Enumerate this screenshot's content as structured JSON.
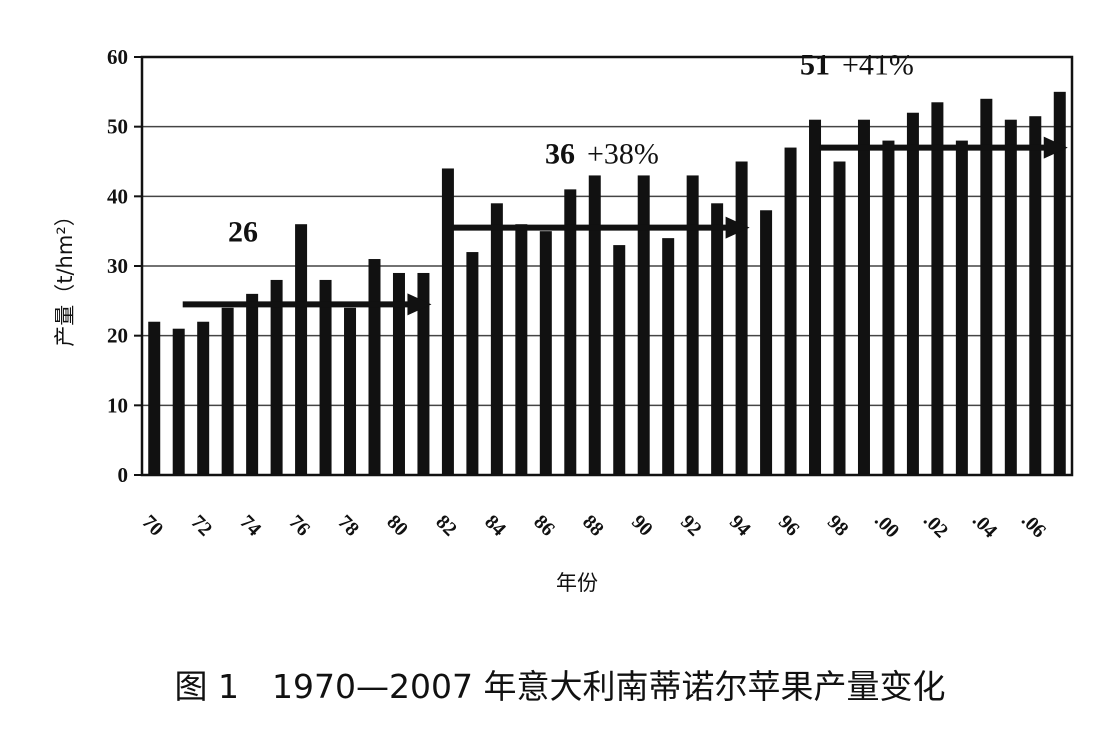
{
  "caption": "图 1　1970—2007 年意大利南蒂诺尔苹果产量变化",
  "chart_data": {
    "type": "bar",
    "xlabel": "年份",
    "ylabel": "产量（t/hm²）",
    "ylim": [
      0,
      60
    ],
    "yticks": [
      0,
      10,
      20,
      30,
      40,
      50,
      60
    ],
    "grid": true,
    "x_tick_labels": [
      "70",
      "72",
      "74",
      "76",
      "78",
      "80",
      "82",
      "84",
      "86",
      "88",
      "90",
      "92",
      "94",
      "96",
      "98",
      ".00",
      ".02",
      ".04",
      ".06"
    ],
    "categories": [
      "1970",
      "1971",
      "1972",
      "1973",
      "1974",
      "1975",
      "1976",
      "1977",
      "1978",
      "1979",
      "1980",
      "1981",
      "1982",
      "1983",
      "1984",
      "1985",
      "1986",
      "1987",
      "1988",
      "1989",
      "1990",
      "1991",
      "1992",
      "1993",
      "1994",
      "1995",
      "1996",
      "1997",
      "1998",
      "1999",
      "2000",
      "2001",
      "2002",
      "2003",
      "2004",
      "2005",
      "2006",
      "2007"
    ],
    "values": [
      22,
      21,
      22,
      24,
      26,
      28,
      36,
      28,
      24,
      31,
      29,
      29,
      44,
      32,
      39,
      36,
      35,
      41,
      43,
      33,
      43,
      34,
      43,
      39,
      45,
      38,
      47,
      51,
      45,
      51,
      48,
      52,
      53.5,
      48,
      54,
      51,
      51.5,
      55
    ],
    "annotations": [
      {
        "value_text": "26",
        "change_text": "",
        "y": 24.5,
        "from_index": 1,
        "to_index": 11
      },
      {
        "value_text": "36",
        "change_text": "+38%",
        "y": 35.5,
        "from_index": 12,
        "to_index": 24
      },
      {
        "value_text": "51",
        "change_text": "+41%",
        "y": 47,
        "from_index": 27,
        "to_index": 37
      }
    ]
  }
}
